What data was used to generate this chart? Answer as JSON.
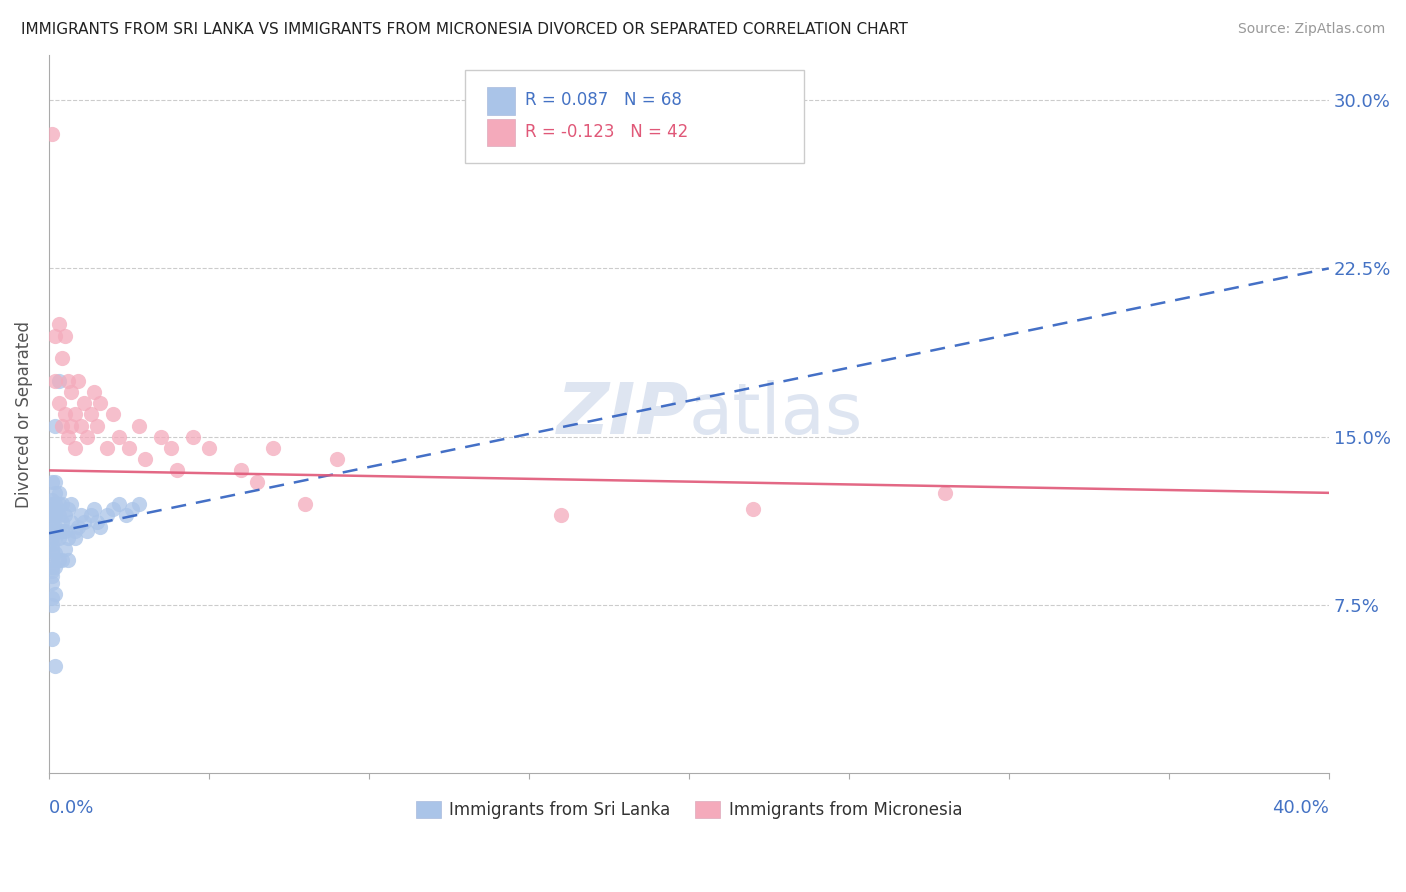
{
  "title": "IMMIGRANTS FROM SRI LANKA VS IMMIGRANTS FROM MICRONESIA DIVORCED OR SEPARATED CORRELATION CHART",
  "source": "Source: ZipAtlas.com",
  "ylabel_ticks": [
    "7.5%",
    "15.0%",
    "22.5%",
    "30.0%"
  ],
  "ylabel_label": "Divorced or Separated",
  "legend1_R": "R = 0.087",
  "legend1_N": "N = 68",
  "legend2_R": "R = -0.123",
  "legend2_N": "N = 42",
  "legend1_label": "Immigrants from Sri Lanka",
  "legend2_label": "Immigrants from Micronesia",
  "sri_lanka_color": "#aac4e8",
  "micronesia_color": "#f4aabb",
  "sri_lanka_line_color": "#3060c0",
  "micronesia_line_color": "#e05878",
  "watermark_zip": "ZIP",
  "watermark_atlas": "atlas",
  "watermark_color": "#c8d4e8",
  "background_color": "#ffffff",
  "xlim": [
    0.0,
    0.4
  ],
  "ylim": [
    0.0,
    0.32
  ],
  "sri_lanka_x": [
    0.001,
    0.001,
    0.001,
    0.001,
    0.001,
    0.001,
    0.001,
    0.001,
    0.001,
    0.001,
    0.001,
    0.001,
    0.001,
    0.001,
    0.001,
    0.001,
    0.001,
    0.001,
    0.001,
    0.001,
    0.002,
    0.002,
    0.002,
    0.002,
    0.002,
    0.002,
    0.002,
    0.002,
    0.002,
    0.002,
    0.003,
    0.003,
    0.003,
    0.003,
    0.003,
    0.003,
    0.004,
    0.004,
    0.004,
    0.004,
    0.005,
    0.005,
    0.005,
    0.006,
    0.006,
    0.006,
    0.007,
    0.007,
    0.008,
    0.008,
    0.009,
    0.01,
    0.011,
    0.012,
    0.013,
    0.014,
    0.015,
    0.016,
    0.018,
    0.02,
    0.022,
    0.024,
    0.026,
    0.028,
    0.003,
    0.002,
    0.001,
    0.002
  ],
  "sri_lanka_y": [
    0.115,
    0.118,
    0.12,
    0.122,
    0.108,
    0.112,
    0.105,
    0.13,
    0.095,
    0.1,
    0.098,
    0.11,
    0.115,
    0.09,
    0.085,
    0.092,
    0.088,
    0.102,
    0.078,
    0.075,
    0.12,
    0.125,
    0.118,
    0.11,
    0.105,
    0.115,
    0.098,
    0.092,
    0.13,
    0.08,
    0.115,
    0.12,
    0.108,
    0.105,
    0.095,
    0.125,
    0.112,
    0.108,
    0.12,
    0.095,
    0.115,
    0.108,
    0.1,
    0.118,
    0.105,
    0.095,
    0.112,
    0.12,
    0.108,
    0.105,
    0.11,
    0.115,
    0.112,
    0.108,
    0.115,
    0.118,
    0.112,
    0.11,
    0.115,
    0.118,
    0.12,
    0.115,
    0.118,
    0.12,
    0.175,
    0.155,
    0.06,
    0.048
  ],
  "micronesia_x": [
    0.001,
    0.002,
    0.002,
    0.003,
    0.003,
    0.004,
    0.004,
    0.005,
    0.005,
    0.006,
    0.006,
    0.007,
    0.007,
    0.008,
    0.008,
    0.009,
    0.01,
    0.011,
    0.012,
    0.013,
    0.014,
    0.015,
    0.016,
    0.018,
    0.02,
    0.022,
    0.025,
    0.028,
    0.03,
    0.035,
    0.038,
    0.04,
    0.045,
    0.05,
    0.06,
    0.065,
    0.07,
    0.08,
    0.09,
    0.16,
    0.22,
    0.28
  ],
  "micronesia_y": [
    0.285,
    0.175,
    0.195,
    0.165,
    0.2,
    0.155,
    0.185,
    0.16,
    0.195,
    0.15,
    0.175,
    0.17,
    0.155,
    0.16,
    0.145,
    0.175,
    0.155,
    0.165,
    0.15,
    0.16,
    0.17,
    0.155,
    0.165,
    0.145,
    0.16,
    0.15,
    0.145,
    0.155,
    0.14,
    0.15,
    0.145,
    0.135,
    0.15,
    0.145,
    0.135,
    0.13,
    0.145,
    0.12,
    0.14,
    0.115,
    0.118,
    0.125
  ]
}
